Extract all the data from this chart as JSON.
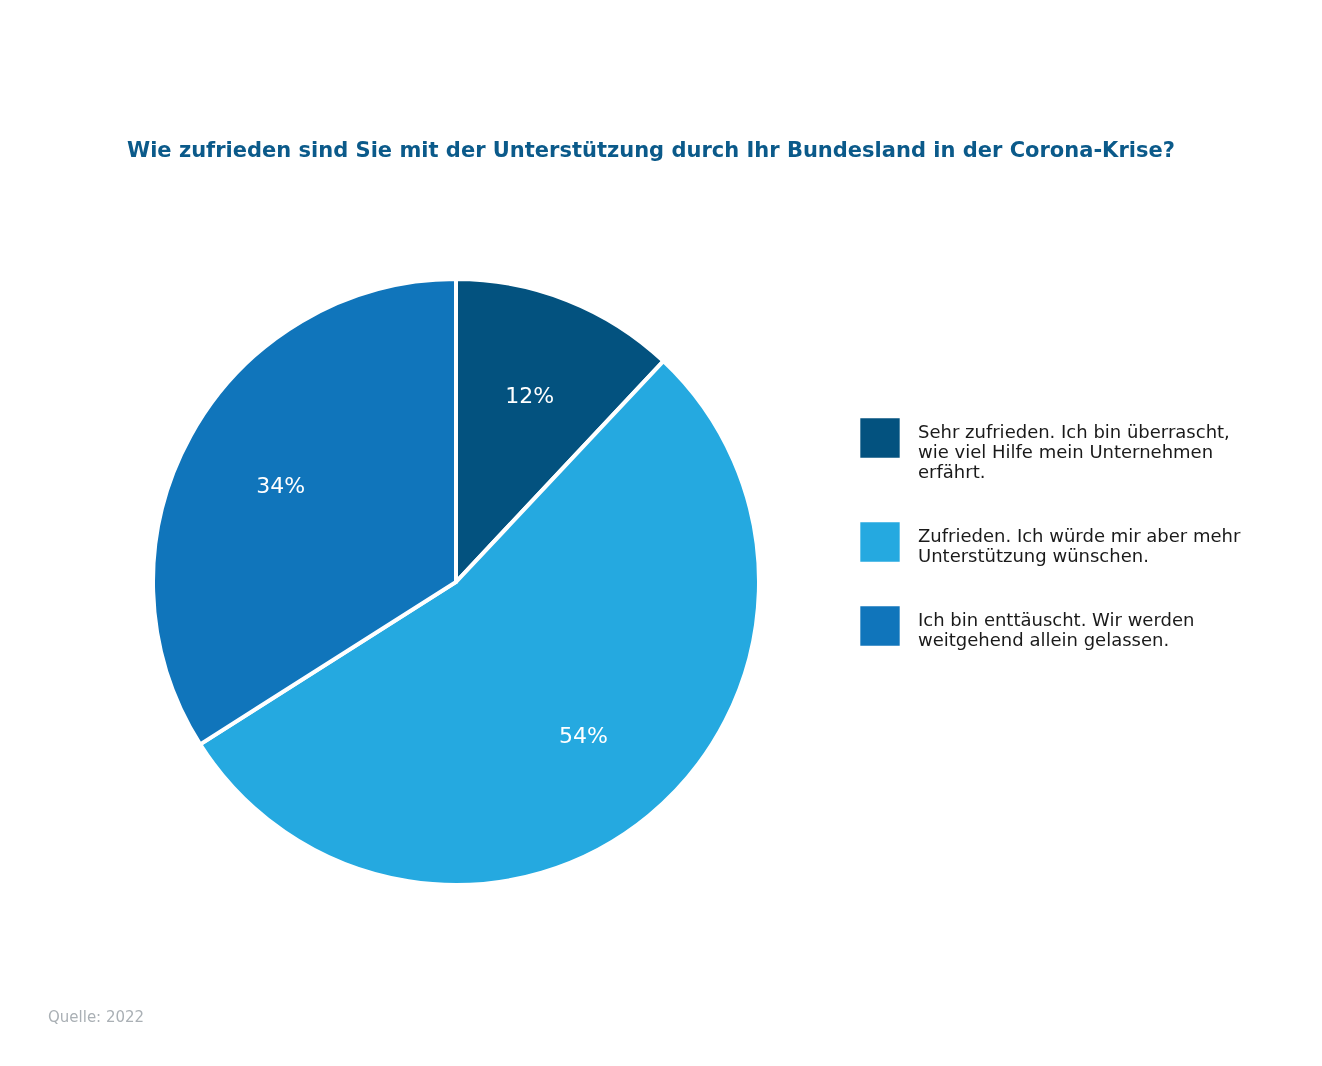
{
  "chart_data": {
    "type": "pie",
    "title": "Wie zufrieden sind Sie mit der Unterstützung durch Ihr Bundesland in der Corona-Krise?",
    "categories": [
      "Sehr zufrieden. Ich bin überrascht, wie viel Hilfe mein Unternehmen erfährt.",
      "Zufrieden. Ich würde mir aber mehr Unterstützung wünschen.",
      "Ich bin enttäuscht. Wir werden weitgehend allein gelassen."
    ],
    "values": [
      12,
      54,
      34
    ],
    "colors": [
      "#03527f",
      "#25a9e0",
      "#1075bb"
    ],
    "value_labels": [
      "12%",
      "54%",
      "34%"
    ],
    "legend": "right",
    "annotations": [
      "Quelle: 2022"
    ]
  }
}
